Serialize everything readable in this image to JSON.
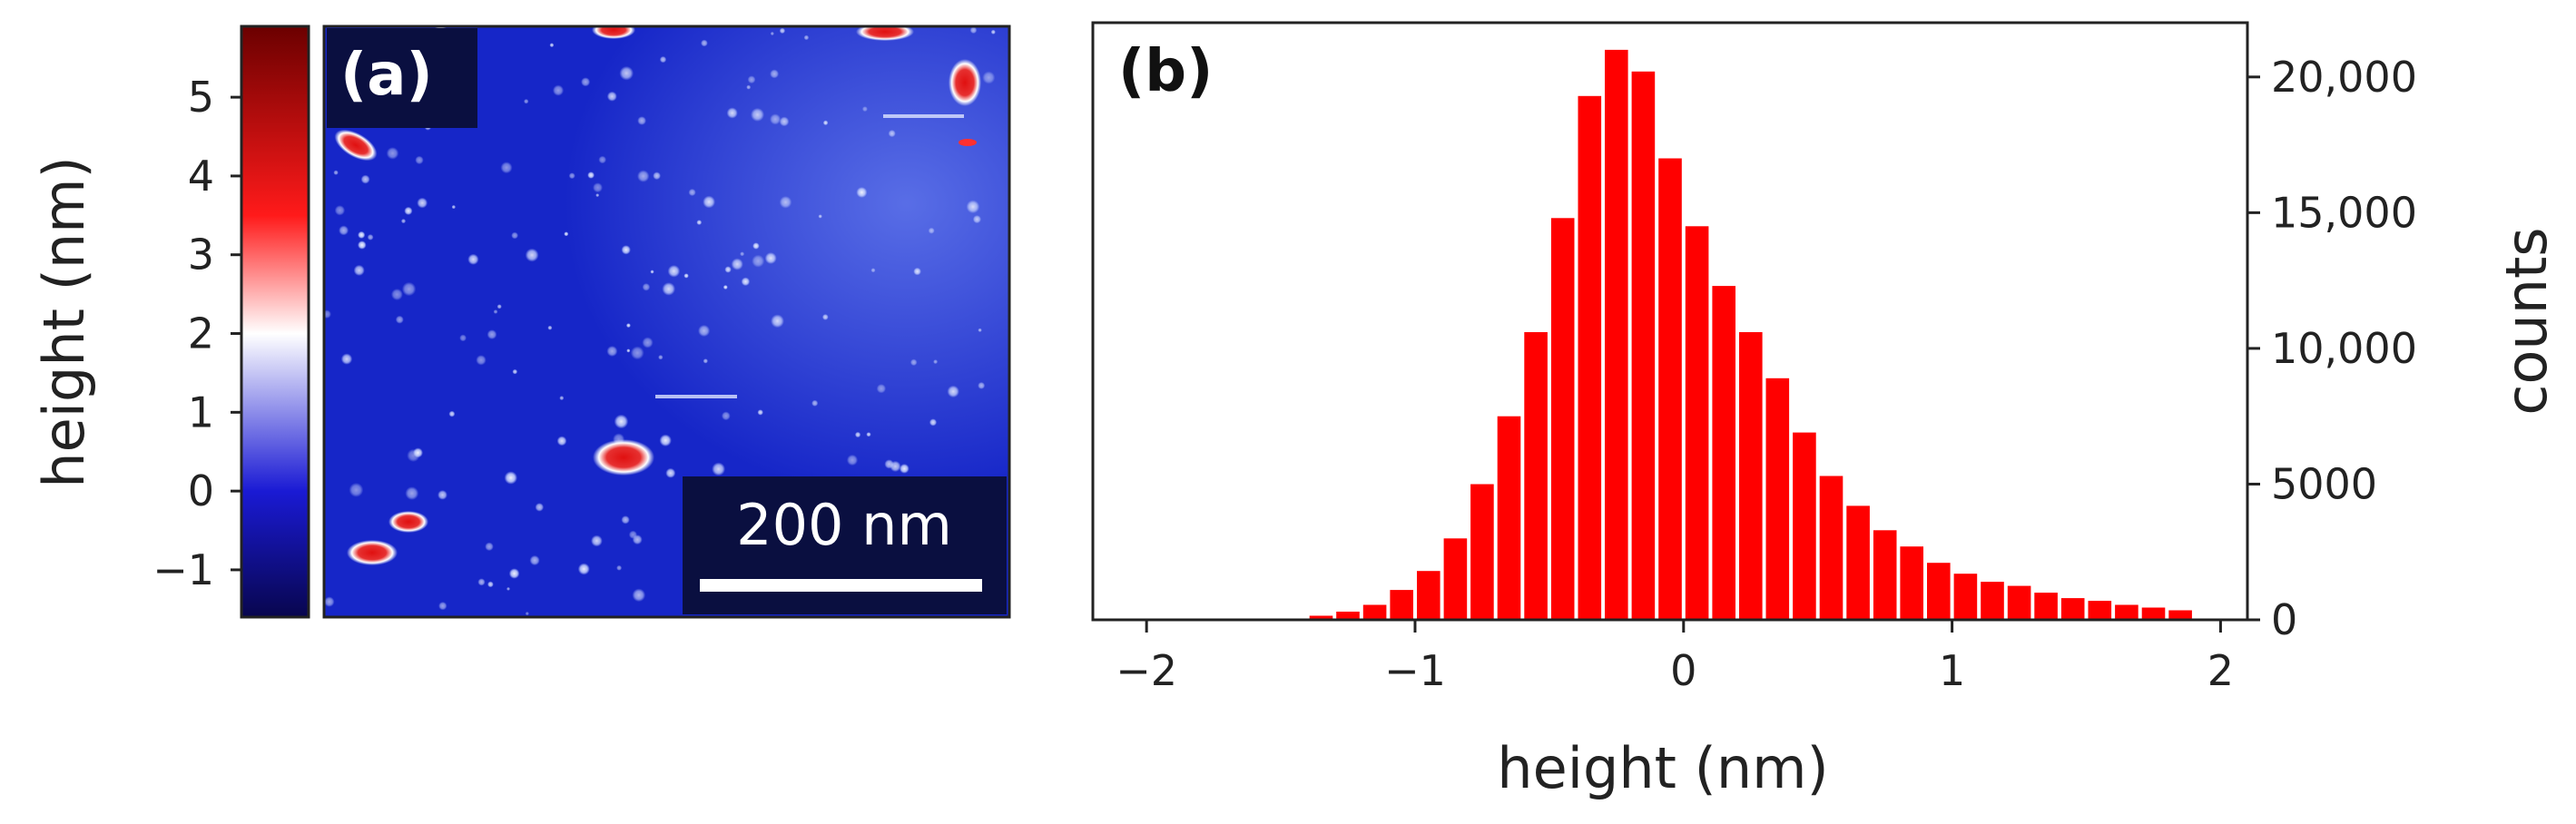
{
  "panel_a": {
    "label": "(a)",
    "scale_bar_text": "200 nm",
    "colorbar": {
      "title": "height (nm)",
      "ticks": [
        "5",
        "4",
        "3",
        "2",
        "1",
        "0",
        "−1"
      ],
      "tick_values": [
        5,
        4,
        3,
        2,
        1,
        0,
        -1
      ],
      "range": [
        -1.6,
        5.9
      ],
      "colors": [
        "#08064e",
        "#1a1ad4",
        "#ffffff",
        "#ff1a1a",
        "#6b0000"
      ]
    },
    "image_colors": {
      "background": "#1626c8",
      "particle_edge": "#ffffff",
      "particle_core": "#e01010"
    }
  },
  "chart_data": {
    "type": "bar",
    "title": "(b)",
    "xlabel": "height (nm)",
    "ylabel": "counts",
    "xlim": [
      -2.2,
      2.1
    ],
    "ylim": [
      0,
      22000
    ],
    "x_ticks": [
      -2,
      -1,
      0,
      1,
      2
    ],
    "x_tick_labels": [
      "−2",
      "−1",
      "0",
      "1",
      "2"
    ],
    "y_ticks": [
      0,
      5000,
      10000,
      15000,
      20000
    ],
    "y_tick_labels": [
      "0",
      "5000",
      "10,000",
      "15,000",
      "20,000"
    ],
    "y_axis_side": "right",
    "bar_color": "#ff0000",
    "bin_width": 0.1,
    "bin_centers": [
      -1.35,
      -1.25,
      -1.15,
      -1.05,
      -0.95,
      -0.85,
      -0.75,
      -0.65,
      -0.55,
      -0.45,
      -0.35,
      -0.25,
      -0.15,
      -0.05,
      0.05,
      0.15,
      0.25,
      0.35,
      0.45,
      0.55,
      0.65,
      0.75,
      0.85,
      0.95,
      1.05,
      1.15,
      1.25,
      1.35,
      1.45,
      1.55,
      1.65,
      1.75,
      1.85
    ],
    "values": [
      150,
      300,
      550,
      1100,
      1800,
      3000,
      5000,
      7500,
      10600,
      14800,
      19300,
      21000,
      20200,
      17000,
      14500,
      12300,
      10600,
      8900,
      6900,
      5300,
      4200,
      3300,
      2700,
      2100,
      1700,
      1400,
      1250,
      1000,
      800,
      700,
      550,
      450,
      350
    ]
  }
}
